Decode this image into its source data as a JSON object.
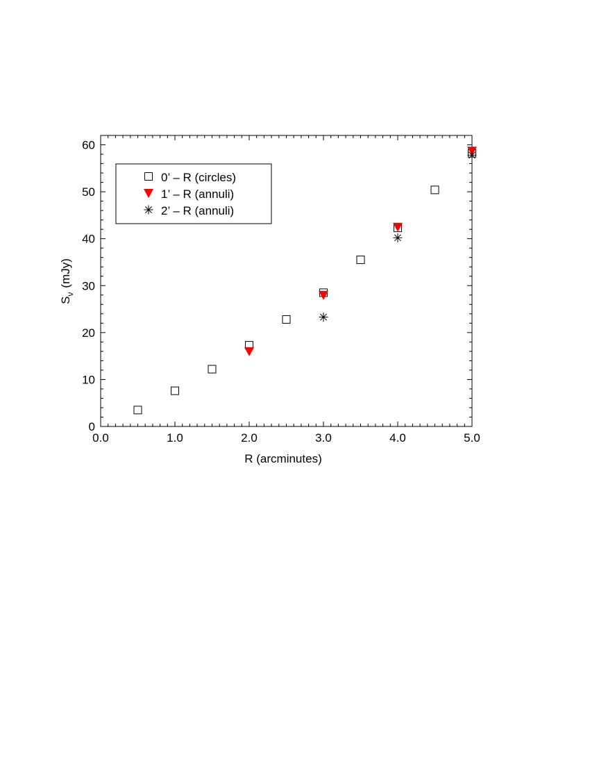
{
  "chart_data": {
    "type": "scatter",
    "xlabel": "R (arcminutes)",
    "ylabel": {
      "main": "S",
      "sub": "ν",
      "rest": "(mJy)"
    },
    "xlim": [
      0.0,
      5.0
    ],
    "ylim": [
      0,
      62
    ],
    "x_ticks": [
      0.0,
      1.0,
      2.0,
      3.0,
      4.0,
      5.0
    ],
    "x_tick_labels": [
      "0.0",
      "1.0",
      "2.0",
      "3.0",
      "4.0",
      "5.0"
    ],
    "y_ticks": [
      0,
      10,
      20,
      30,
      40,
      50,
      60
    ],
    "y_tick_labels": [
      "0",
      "10",
      "20",
      "30",
      "40",
      "50",
      "60"
    ],
    "grid": false,
    "legend_position": "upper-left",
    "series": [
      {
        "name": "0’ –  R (circles)",
        "marker": "open-square",
        "color": "#000000",
        "x": [
          0.5,
          1.0,
          1.5,
          2.0,
          2.5,
          3.0,
          3.5,
          4.0,
          4.5,
          5.0
        ],
        "y": [
          3.5,
          7.6,
          12.2,
          17.3,
          22.8,
          28.5,
          35.5,
          42.3,
          50.4,
          58.2
        ]
      },
      {
        "name": "1’ –  R (annuli)",
        "marker": "filled-triangle-down",
        "color": "#ff0000",
        "x": [
          2.0,
          3.0,
          4.0,
          5.0
        ],
        "y": [
          16.0,
          28.0,
          42.5,
          58.7
        ]
      },
      {
        "name": "2’ –  R (annuli)",
        "marker": "asterisk",
        "color": "#000000",
        "x": [
          3.0,
          4.0,
          5.0
        ],
        "y": [
          23.3,
          40.2,
          57.8
        ]
      }
    ]
  }
}
